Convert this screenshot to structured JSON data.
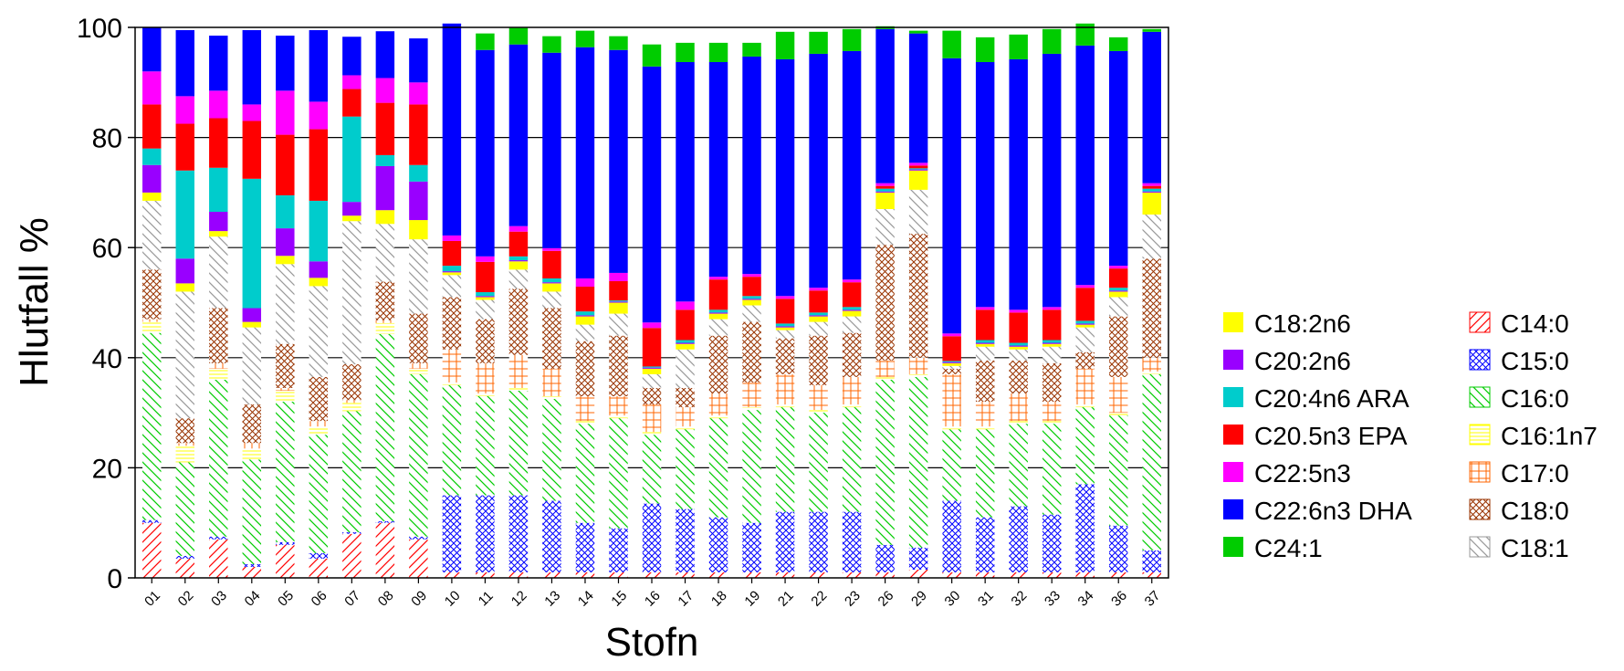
{
  "chart_data": {
    "type": "bar",
    "stacked": true,
    "title": "",
    "xlabel": "Stofn",
    "ylabel": "Hlutfall %",
    "ylim": [
      0,
      100
    ],
    "yticks": [
      0,
      20,
      40,
      60,
      80,
      100
    ],
    "legend_position": "right",
    "categories": [
      "01",
      "02",
      "03",
      "04",
      "05",
      "06",
      "07",
      "08",
      "09",
      "10",
      "11",
      "12",
      "13",
      "14",
      "15",
      "16",
      "17",
      "18",
      "19",
      "21",
      "22",
      "23",
      "26",
      "29",
      "30",
      "31",
      "32",
      "33",
      "34",
      "36",
      "37"
    ],
    "series": [
      {
        "name": "C14:0",
        "color": "#ff0000",
        "pattern": "diag-fwd",
        "values": [
          10,
          3.5,
          7,
          2,
          6,
          3.5,
          8,
          10,
          7,
          1,
          1,
          1,
          1,
          1,
          1,
          1,
          1,
          1,
          1,
          1,
          1,
          1,
          1,
          1.5,
          1,
          1,
          1,
          1,
          1,
          1,
          1
        ]
      },
      {
        "name": "C15:0",
        "color": "#0000ff",
        "pattern": "cross",
        "values": [
          0.5,
          0.5,
          0.5,
          0.5,
          0.5,
          1,
          0.3,
          0.3,
          0.5,
          14,
          14,
          14,
          13,
          9,
          8,
          12.5,
          11.5,
          10,
          9,
          11,
          11,
          11,
          5,
          4,
          13,
          10,
          12,
          10.5,
          16,
          8.5,
          4
        ]
      },
      {
        "name": "C16:0",
        "color": "#00cc00",
        "pattern": "diag-back",
        "values": [
          34,
          17,
          28.5,
          19,
          25.5,
          21.5,
          22,
          34,
          29.5,
          20,
          18,
          19,
          18.5,
          18,
          20,
          12.5,
          14.5,
          18,
          20.5,
          19,
          18,
          19,
          30,
          31,
          13,
          16,
          15,
          16.5,
          14,
          20,
          32
        ]
      },
      {
        "name": "C16:1n7",
        "color": "#ffff00",
        "pattern": "hlines",
        "values": [
          2,
          3,
          2,
          2,
          2,
          1.5,
          1.5,
          2,
          1,
          0.5,
          0.5,
          0.5,
          0.5,
          0.5,
          0.5,
          0.5,
          0.5,
          0.5,
          0.5,
          0.5,
          0.5,
          0.5,
          0.5,
          0.5,
          0.5,
          0.5,
          0.5,
          0.5,
          0.5,
          0.5,
          0.5
        ]
      },
      {
        "name": "C17:0",
        "color": "#ff6600",
        "pattern": "grid",
        "values": [
          0.5,
          0.5,
          1,
          1,
          0.5,
          1,
          0.5,
          0.5,
          1,
          6,
          5.5,
          6,
          5,
          4.5,
          3.5,
          5,
          3.5,
          4,
          4.5,
          5.5,
          4.5,
          5,
          3,
          3,
          9.5,
          4.5,
          5,
          3.5,
          6.5,
          6.5,
          2.5
        ]
      },
      {
        "name": "C18:0",
        "color": "#993300",
        "pattern": "cross",
        "values": [
          9,
          4.5,
          10,
          7,
          8,
          8,
          6.5,
          7,
          9,
          9.5,
          8,
          12,
          11,
          10,
          11,
          3,
          3.5,
          10.5,
          11,
          6.5,
          9,
          8,
          21,
          22.5,
          1,
          7.5,
          6,
          7,
          3,
          11,
          18
        ]
      },
      {
        "name": "C18:1",
        "color": "#999999",
        "pattern": "diag-back",
        "values": [
          12.5,
          23,
          13,
          14,
          14.5,
          16.5,
          26,
          10.5,
          13.5,
          4,
          3.5,
          3.5,
          3,
          3,
          4,
          2.5,
          7,
          3,
          3,
          1.5,
          2.5,
          3,
          6.5,
          8,
          0.5,
          2.5,
          2,
          3,
          4.5,
          3.5,
          8
        ]
      },
      {
        "name": "C18:2n6",
        "color": "#ffff00",
        "pattern": "solid",
        "values": [
          1.5,
          1.5,
          1,
          1,
          1.5,
          1.5,
          1,
          2.5,
          3.5,
          0.5,
          0.5,
          1.5,
          1.5,
          1.5,
          2,
          1,
          1,
          1,
          1,
          0.5,
          1,
          1,
          3,
          3.5,
          0.5,
          0.5,
          0.5,
          0.5,
          0.5,
          1,
          4
        ]
      },
      {
        "name": "C20:2n6",
        "color": "#9900ff",
        "pattern": "solid",
        "values": [
          5,
          4.5,
          3.5,
          2.5,
          5,
          3,
          2.5,
          8,
          7,
          0.2,
          0.2,
          0.2,
          0.2,
          0.2,
          0.2,
          0.2,
          0.2,
          0.2,
          0.2,
          0.2,
          0.2,
          0.2,
          0.2,
          0.2,
          0.2,
          0.2,
          0.2,
          0.2,
          0.2,
          0.2,
          0.2
        ]
      },
      {
        "name": "C20:4n6 ARA",
        "color": "#00cccc",
        "pattern": "solid",
        "values": [
          3,
          16,
          8,
          23.5,
          6,
          11,
          15.5,
          2,
          3,
          1,
          0.7,
          0.7,
          0.7,
          0.7,
          0.2,
          0.2,
          0.5,
          0.5,
          0.5,
          0.5,
          0.5,
          0.5,
          0.5,
          0.2,
          0.2,
          0.5,
          0.5,
          0.5,
          0.5,
          0.5,
          0.5
        ]
      },
      {
        "name": "C20.5n3 EPA",
        "color": "#ff0000",
        "pattern": "solid",
        "values": [
          8,
          8.5,
          9,
          10.5,
          11,
          13,
          5,
          9.5,
          11,
          4.5,
          5.5,
          4.5,
          5,
          4.5,
          3.5,
          7,
          5.5,
          5.5,
          3.5,
          4.5,
          4,
          4.5,
          0.5,
          0.5,
          4.5,
          5.5,
          5.5,
          5.5,
          6,
          3.5,
          0.5
        ]
      },
      {
        "name": "C22:5n3",
        "color": "#ff00ff",
        "pattern": "solid",
        "values": [
          6,
          5,
          5,
          3,
          8,
          5,
          2.5,
          4.5,
          4,
          1,
          1,
          1,
          0.5,
          1.5,
          1.5,
          1,
          1.5,
          0.5,
          0.5,
          0.5,
          0.5,
          0.5,
          0.5,
          0.5,
          0.5,
          0.5,
          0.5,
          0.5,
          0.5,
          0.5,
          0.5
        ]
      },
      {
        "name": "C22:6n3 DHA",
        "color": "#0000ff",
        "pattern": "solid",
        "values": [
          8,
          12,
          10,
          13.5,
          10,
          13,
          7,
          8.5,
          8,
          38.5,
          37.5,
          33,
          35.5,
          42,
          40.5,
          46.5,
          43.5,
          39,
          39.5,
          43,
          42.5,
          41.5,
          28,
          23.5,
          50,
          44.5,
          45.5,
          46,
          43.5,
          39,
          27.5
        ]
      },
      {
        "name": "C24:1",
        "color": "#00cc00",
        "pattern": "solid",
        "values": [
          0,
          0,
          0,
          0,
          0,
          0,
          0,
          0,
          0,
          0,
          3,
          3,
          3,
          3,
          2.5,
          4,
          3.5,
          3.5,
          2.5,
          5,
          4,
          4,
          0.5,
          0.5,
          5,
          4.5,
          4.5,
          4.5,
          4,
          2.5,
          0.5
        ]
      }
    ],
    "legend_columns": [
      [
        "C18:2n6",
        "C20:2n6",
        "C20:4n6 ARA",
        "C20.5n3 EPA",
        "C22:5n3",
        "C22:6n3 DHA",
        "C24:1"
      ],
      [
        "C14:0",
        "C15:0",
        "C16:0",
        "C16:1n7",
        "C17:0",
        "C18:0",
        "C18:1"
      ]
    ]
  }
}
